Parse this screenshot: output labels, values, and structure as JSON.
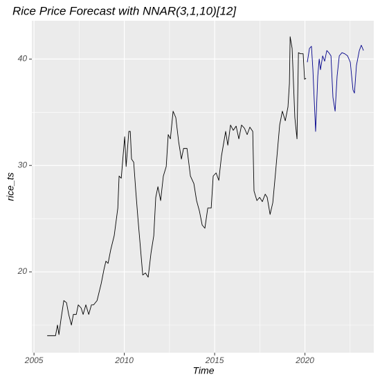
{
  "chart_data": {
    "type": "line",
    "title": "Rice Price Forecast with NNAR(3,1,10)[12]",
    "xlabel": "Time",
    "ylabel": "rice_ts",
    "xlim": [
      2004.88,
      2023.81
    ],
    "ylim": [
      12.4,
      43.6
    ],
    "xticks": [
      2005,
      2010,
      2015,
      2020
    ],
    "yticks": [
      20,
      30,
      40
    ],
    "grid": true,
    "minor_grid": true,
    "series": [
      {
        "color": "#000000",
        "x": [
          2005.73,
          2006.19,
          2006.3,
          2006.38,
          2006.49,
          2006.65,
          2006.8,
          2006.92,
          2007.07,
          2007.18,
          2007.34,
          2007.45,
          2007.61,
          2007.72,
          2007.87,
          2008.03,
          2008.18,
          2008.3,
          2008.49,
          2008.72,
          2008.87,
          2008.98,
          2009.1,
          2009.25,
          2009.44,
          2009.64,
          2009.71,
          2009.83,
          2010.02,
          2010.1,
          2010.25,
          2010.33,
          2010.4,
          2010.52,
          2010.63,
          2010.75,
          2010.9,
          2011.02,
          2011.17,
          2011.32,
          2011.48,
          2011.63,
          2011.74,
          2011.86,
          2012.01,
          2012.16,
          2012.32,
          2012.43,
          2012.55,
          2012.7,
          2012.85,
          2013.01,
          2013.16,
          2013.28,
          2013.47,
          2013.66,
          2013.85,
          2014.0,
          2014.16,
          2014.31,
          2014.46,
          2014.62,
          2014.81,
          2014.92,
          2015.08,
          2015.23,
          2015.38,
          2015.61,
          2015.73,
          2015.88,
          2016.03,
          2016.19,
          2016.34,
          2016.49,
          2016.65,
          2016.8,
          2016.95,
          2017.11,
          2017.18,
          2017.34,
          2017.49,
          2017.64,
          2017.8,
          2017.91,
          2018.07,
          2018.22,
          2018.37,
          2018.6,
          2018.75,
          2018.91,
          2019.06,
          2019.14,
          2019.18,
          2019.29,
          2019.44,
          2019.56,
          2019.64,
          2019.75,
          2019.9,
          2019.98,
          2020.06
        ],
        "values": [
          14.0,
          14.0,
          15.0,
          14.1,
          15.5,
          17.3,
          17.1,
          16.0,
          15.0,
          16.0,
          16.0,
          16.9,
          16.6,
          16.0,
          16.9,
          16.0,
          16.9,
          16.9,
          17.3,
          18.9,
          20.2,
          21.0,
          20.8,
          22.1,
          23.4,
          26.0,
          29.0,
          28.8,
          32.7,
          29.9,
          33.2,
          33.2,
          30.6,
          30.3,
          27.7,
          25.1,
          22.1,
          19.7,
          19.9,
          19.5,
          21.8,
          23.4,
          27.0,
          28.0,
          26.7,
          29.0,
          29.9,
          32.9,
          32.5,
          35.1,
          34.5,
          32.2,
          30.6,
          31.6,
          31.6,
          29.0,
          28.3,
          26.7,
          25.7,
          24.4,
          24.1,
          26.0,
          26.0,
          29.0,
          29.3,
          28.6,
          30.9,
          33.2,
          31.9,
          33.8,
          33.3,
          33.7,
          32.5,
          33.8,
          33.5,
          32.9,
          33.6,
          33.2,
          27.6,
          26.7,
          27.0,
          26.6,
          27.3,
          27.0,
          25.4,
          26.5,
          29.3,
          33.8,
          35.1,
          34.2,
          35.5,
          37.7,
          42.1,
          41.0,
          34.5,
          32.5,
          40.6,
          40.5,
          40.5,
          38.1,
          38.2
        ]
      },
      {
        "color": "#00008b",
        "x": [
          2020.13,
          2020.25,
          2020.36,
          2020.44,
          2020.59,
          2020.71,
          2020.79,
          2020.86,
          2020.98,
          2021.09,
          2021.21,
          2021.32,
          2021.44,
          2021.55,
          2021.67,
          2021.78,
          2021.9,
          2022.05,
          2022.2,
          2022.36,
          2022.51,
          2022.66,
          2022.74,
          2022.85,
          2023.01,
          2023.12,
          2023.24
        ],
        "values": [
          39.7,
          41.0,
          41.2,
          39.0,
          33.2,
          38.4,
          40.0,
          39.0,
          40.3,
          39.8,
          40.8,
          40.6,
          40.3,
          36.4,
          35.1,
          38.4,
          40.3,
          40.6,
          40.5,
          40.3,
          39.7,
          37.1,
          36.8,
          39.4,
          40.8,
          41.3,
          40.8
        ]
      }
    ]
  }
}
